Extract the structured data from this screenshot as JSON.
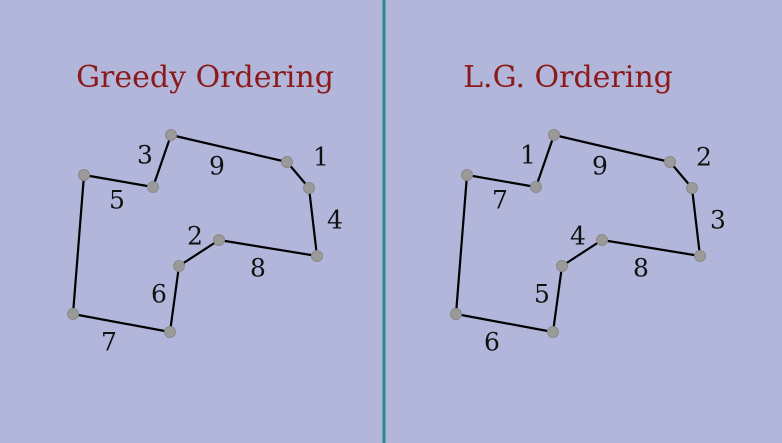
{
  "background_color": "#b2b6da",
  "title_color": "#8b1a1a",
  "divider_color": "#2f8a8f",
  "panels": [
    {
      "title": "Greedy Ordering",
      "edge_labels": [
        "3",
        "9",
        "1",
        "5",
        "4",
        "2",
        "8",
        "6",
        "7"
      ]
    },
    {
      "title": "L.G. Ordering",
      "edge_labels": [
        "1",
        "9",
        "2",
        "7",
        "3",
        "4",
        "8",
        "5",
        "6"
      ]
    }
  ]
}
